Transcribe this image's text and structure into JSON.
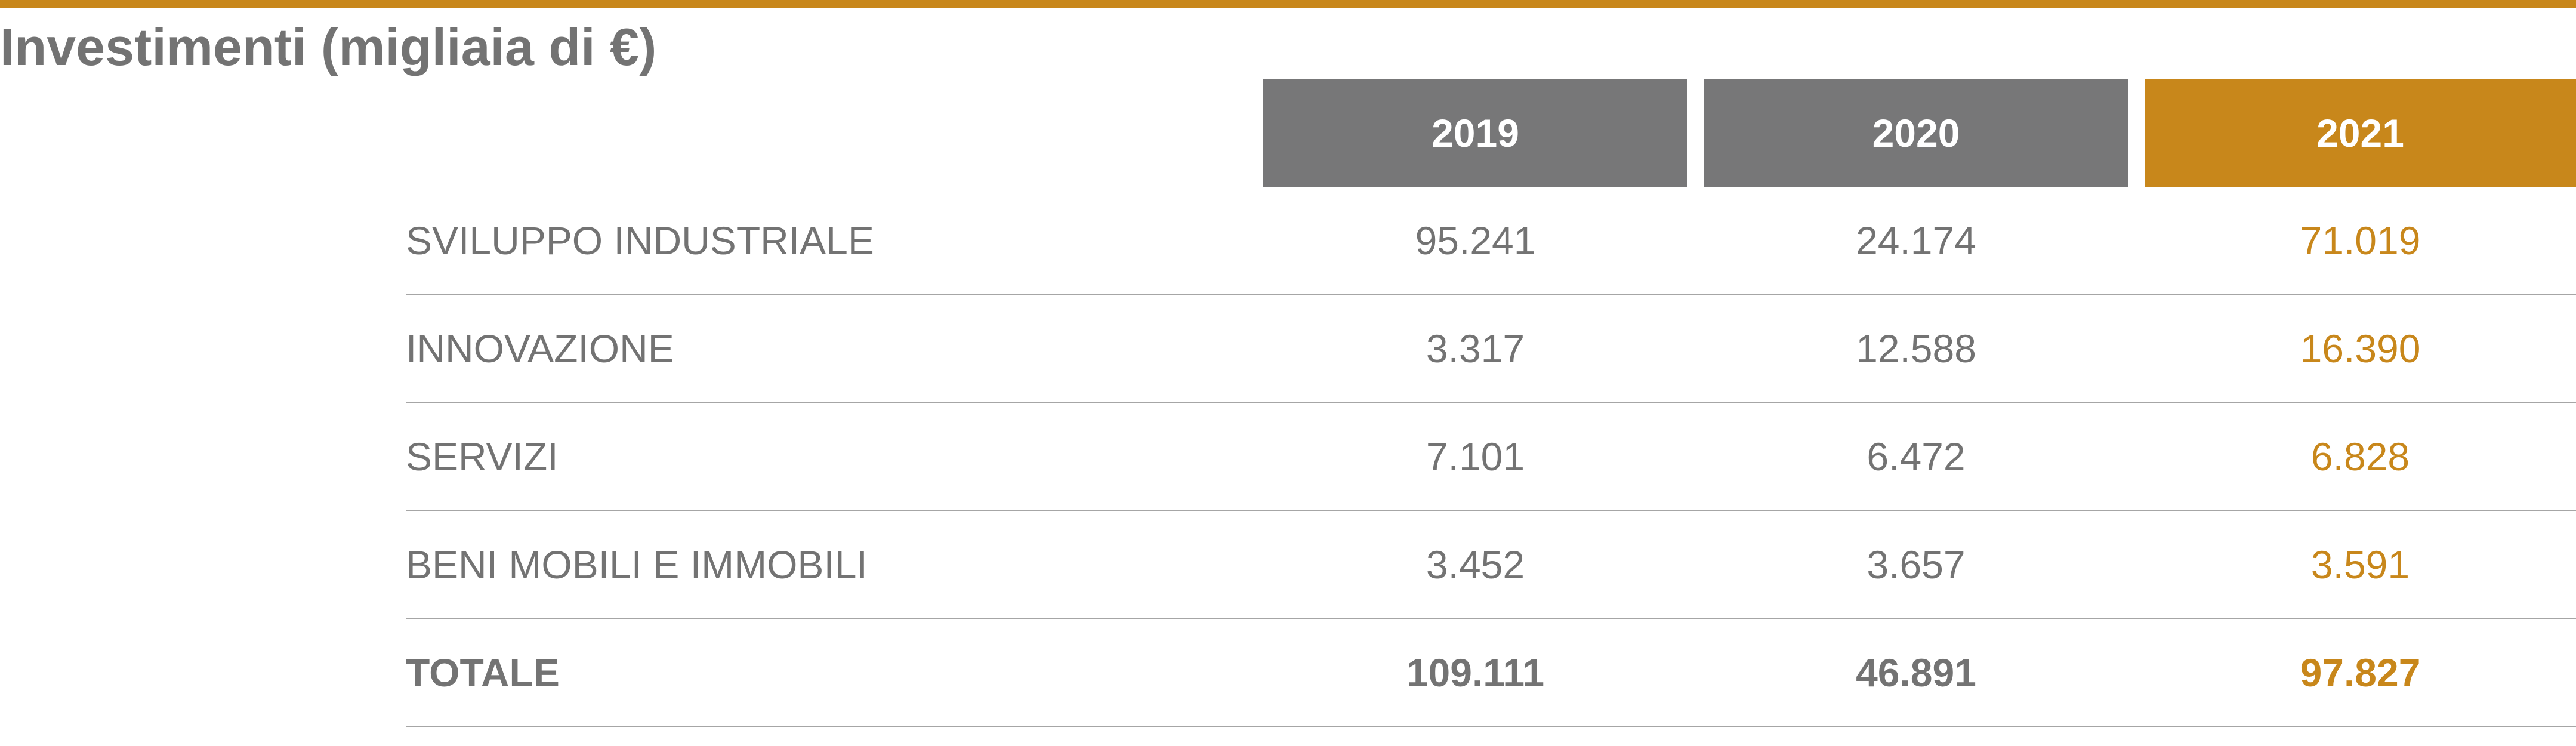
{
  "title": "Investimenti (migliaia di €)",
  "colors": {
    "accent": "#c8871b",
    "gray": "#737373",
    "header_gray": "#777778",
    "rule": "#a6a6a6"
  },
  "headers": [
    "2019",
    "2020",
    "2021"
  ],
  "rows": [
    {
      "label": "SVILUPPO INDUSTRIALE",
      "values": [
        "95.241",
        "24.174",
        "71.019"
      ]
    },
    {
      "label": "INNOVAZIONE",
      "values": [
        "3.317",
        "12.588",
        "16.390"
      ]
    },
    {
      "label": "SERVIZI",
      "values": [
        "7.101",
        "6.472",
        "6.828"
      ]
    },
    {
      "label": "BENI MOBILI E IMMOBILI",
      "values": [
        "3.452",
        "3.657",
        "3.591"
      ]
    },
    {
      "label": "TOTALE",
      "values": [
        "109.111",
        "46.891",
        "97.827"
      ]
    }
  ],
  "chart_data": {
    "type": "table",
    "title": "Investimenti (migliaia di €)",
    "columns": [
      "2019",
      "2020",
      "2021"
    ],
    "highlighted_column": "2021",
    "rows": [
      {
        "label": "SVILUPPO INDUSTRIALE",
        "values": [
          95241,
          24174,
          71019
        ]
      },
      {
        "label": "INNOVAZIONE",
        "values": [
          3317,
          12588,
          16390
        ]
      },
      {
        "label": "SERVIZI",
        "values": [
          7101,
          6472,
          6828
        ]
      },
      {
        "label": "BENI MOBILI E IMMOBILI",
        "values": [
          3452,
          3657,
          3591
        ]
      },
      {
        "label": "TOTALE",
        "values": [
          109111,
          46891,
          97827
        ]
      }
    ]
  }
}
